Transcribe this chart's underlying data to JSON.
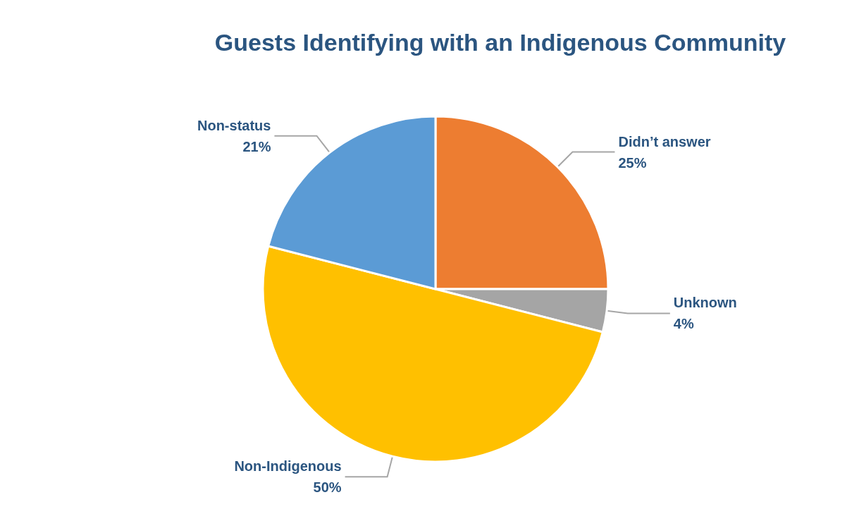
{
  "chart_data": {
    "type": "pie",
    "title": "Guests Identifying with an Indigenous Community",
    "categories": [
      "Didn’t answer",
      "Unknown",
      "Non-Indigenous",
      "Non-status"
    ],
    "values": [
      25,
      4,
      50,
      21
    ],
    "value_labels": [
      "25%",
      "4%",
      "50%",
      "21%"
    ],
    "colors": [
      "#ed7d31",
      "#a5a5a5",
      "#ffc000",
      "#5b9bd5"
    ],
    "legend": false
  }
}
